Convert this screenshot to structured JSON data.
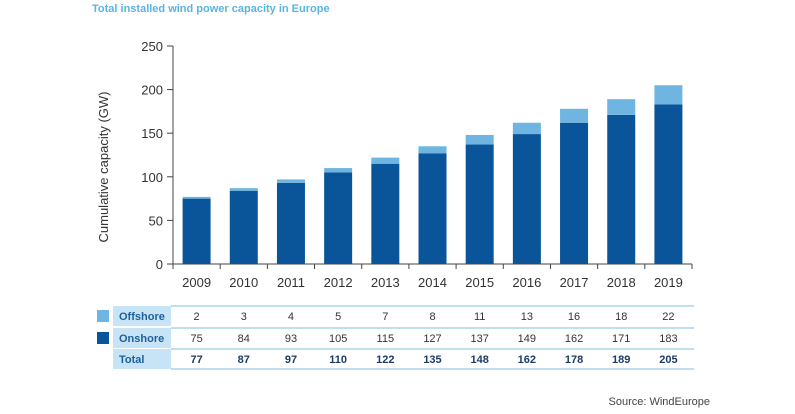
{
  "chart_data": {
    "type": "bar",
    "stacked": true,
    "title": "Total installed wind power capacity in Europe",
    "ylabel": "Cumulative capacity (GW)",
    "xlabel": "",
    "ylim": [
      0,
      250
    ],
    "yticks": [
      0,
      50,
      100,
      150,
      200,
      250
    ],
    "grid": false,
    "categories": [
      "2009",
      "2010",
      "2011",
      "2012",
      "2013",
      "2014",
      "2015",
      "2016",
      "2017",
      "2018",
      "2019"
    ],
    "series": [
      {
        "name": "Onshore",
        "color": "#0a5599",
        "values": [
          75,
          84,
          93,
          105,
          115,
          127,
          137,
          149,
          162,
          171,
          183
        ]
      },
      {
        "name": "Offshore",
        "color": "#6fb5e1",
        "values": [
          2,
          3,
          4,
          5,
          7,
          8,
          11,
          13,
          16,
          18,
          22
        ]
      }
    ],
    "table": {
      "rows": [
        {
          "label": "Offshore",
          "color": "#6fb5e1",
          "values": [
            2,
            3,
            4,
            5,
            7,
            8,
            11,
            13,
            16,
            18,
            22
          ]
        },
        {
          "label": "Onshore",
          "color": "#0a5599",
          "values": [
            75,
            84,
            93,
            105,
            115,
            127,
            137,
            149,
            162,
            171,
            183
          ]
        },
        {
          "label": "Total",
          "values": [
            77,
            87,
            97,
            110,
            122,
            135,
            148,
            162,
            178,
            189,
            205
          ]
        }
      ]
    },
    "source": "Source: WindEurope"
  }
}
